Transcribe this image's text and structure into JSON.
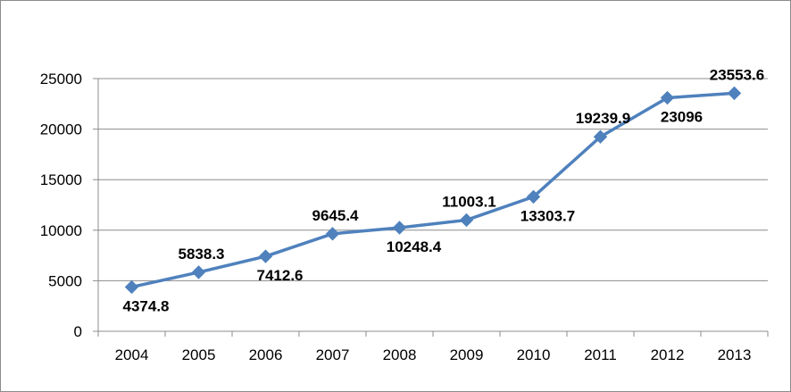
{
  "chart_data": {
    "type": "line",
    "title": "",
    "xlabel": "",
    "ylabel": "",
    "categories": [
      "2004",
      "2005",
      "2006",
      "2007",
      "2008",
      "2009",
      "2010",
      "2011",
      "2012",
      "2013"
    ],
    "series": [
      {
        "values": [
          4374.8,
          5838.3,
          7412.6,
          9645.4,
          10248.4,
          11003.1,
          13303.7,
          19239.9,
          23096,
          23553.6
        ],
        "color": "#4f81bd",
        "marker": "diamond"
      }
    ],
    "data_labels": [
      "4374.8",
      "5838.3",
      "7412.6",
      "9645.4",
      "10248.4",
      "11003.1",
      "13303.7",
      "19239.9",
      "23096",
      "23553.6"
    ],
    "ylim": [
      0,
      25000
    ],
    "yticks": [
      0,
      5000,
      10000,
      15000,
      20000,
      25000
    ],
    "grid": true,
    "legend": "none"
  }
}
